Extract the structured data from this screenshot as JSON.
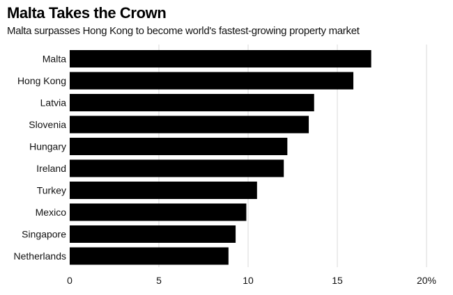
{
  "chart_data": {
    "type": "bar",
    "orientation": "horizontal",
    "title": "Malta Takes the Crown",
    "subtitle": "Malta surpasses Hong Kong to become world's fastest-growing property market",
    "categories": [
      "Malta",
      "Hong Kong",
      "Latvia",
      "Slovenia",
      "Hungary",
      "Ireland",
      "Turkey",
      "Mexico",
      "Singapore",
      "Netherlands"
    ],
    "values": [
      16.9,
      15.9,
      13.7,
      13.4,
      12.2,
      12.0,
      10.5,
      9.9,
      9.3,
      8.9
    ],
    "xlim": [
      0,
      20
    ],
    "xticks": [
      0,
      5,
      10,
      15,
      20
    ],
    "xtick_labels": [
      "0",
      "5",
      "10",
      "15",
      "20%"
    ],
    "xlabel": "",
    "ylabel": "",
    "grid": true,
    "bar_color": "#000000",
    "grid_color": "#d9d9d9"
  }
}
